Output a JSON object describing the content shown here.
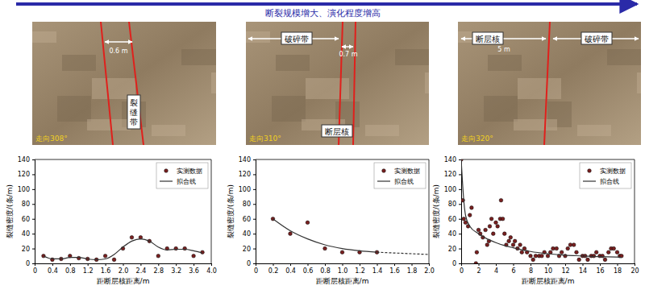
{
  "header": {
    "title": "断裂规模增大、演化程度增高"
  },
  "photos": [
    {
      "strike": "走向308°",
      "labels": [
        "0.6 m",
        "裂缝带"
      ]
    },
    {
      "strike": "走向310°",
      "labels": [
        "破碎带",
        "0.7 m",
        "断层核"
      ]
    },
    {
      "strike": "走向320°",
      "labels": [
        "断层核",
        "5 m",
        "破碎带"
      ]
    }
  ],
  "chart_data": [
    {
      "type": "scatter",
      "x_label": "距断层核距离/m",
      "y_label": "裂缝密度/(条/m)",
      "xlim": [
        0,
        4
      ],
      "xticks": [
        0,
        0.4,
        0.8,
        1.2,
        1.6,
        {
          "value": 2,
          "label": "2.0"
        },
        2.4,
        2.8,
        3.2,
        3.6,
        {
          "value": 4,
          "label": "4.0"
        }
      ],
      "ylim": [
        0,
        140
      ],
      "yticks": [
        0,
        20,
        40,
        60,
        80,
        100,
        120,
        140
      ],
      "grid": false,
      "legend": "upper right",
      "series": [
        {
          "name": "实测数据",
          "type": "scatter",
          "marker": "circle",
          "color": "#7a2020",
          "x": [
            0.2,
            0.4,
            0.6,
            0.8,
            1.0,
            1.2,
            1.4,
            1.6,
            1.8,
            2.0,
            2.2,
            2.4,
            2.6,
            2.8,
            3.0,
            3.2,
            3.4,
            3.6,
            3.8
          ],
          "values": [
            10,
            5,
            6,
            10,
            7,
            6,
            5,
            10,
            5,
            20,
            35,
            35,
            30,
            10,
            20,
            20,
            20,
            10,
            15
          ]
        },
        {
          "name": "拟合线",
          "type": "line",
          "line_style": "solid",
          "color": "#333333",
          "x": [
            0.2,
            0.4,
            0.6,
            0.8,
            1.0,
            1.2,
            1.4,
            1.6,
            1.8,
            2.0,
            2.2,
            2.4,
            2.6,
            2.8,
            3.0,
            3.2,
            3.4,
            3.6,
            3.8
          ],
          "values": [
            10,
            6,
            6,
            8,
            8,
            6,
            5,
            6,
            12,
            22,
            30,
            33,
            30,
            22,
            18,
            19,
            19,
            17,
            14
          ]
        }
      ]
    },
    {
      "type": "scatter",
      "x_label": "距断层核距离/m",
      "y_label": "裂缝密度/(条/m)",
      "xlim": [
        0,
        2
      ],
      "xticks": [
        0,
        0.2,
        0.4,
        0.6,
        0.8,
        {
          "value": 1,
          "label": "1.0"
        },
        1.2,
        1.4,
        1.6,
        1.8,
        {
          "value": 2,
          "label": "2.0"
        }
      ],
      "ylim": [
        0,
        140
      ],
      "yticks": [
        0,
        20,
        40,
        60,
        80,
        100,
        120,
        140
      ],
      "grid": false,
      "legend": "upper right",
      "series": [
        {
          "name": "实测数据",
          "type": "scatter",
          "marker": "circle",
          "color": "#7a2020",
          "x": [
            0.2,
            0.4,
            0.6,
            0.8,
            1.0,
            1.2,
            1.4
          ],
          "values": [
            60,
            40,
            55,
            20,
            15,
            15,
            15
          ]
        },
        {
          "name": "拟合线",
          "type": "line",
          "line_style": "solid",
          "color": "#333333",
          "x": [
            0.2,
            0.4,
            0.6,
            0.8,
            1.0,
            1.2,
            1.4
          ],
          "values": [
            60,
            44,
            33,
            25,
            20,
            17,
            15
          ]
        },
        {
          "type": "line",
          "line_style": "dashed",
          "color": "#333333",
          "x": [
            1.4,
            1.6,
            1.8,
            2.0
          ],
          "values": [
            15,
            14,
            13,
            12
          ]
        }
      ]
    },
    {
      "type": "scatter",
      "x_label": "距断层核距离/m",
      "y_label": "裂缝密度/(条/m)",
      "xlim": [
        0,
        20
      ],
      "xticks": [
        0,
        2,
        4,
        6,
        8,
        10,
        12,
        14,
        16,
        18,
        20
      ],
      "ylim": [
        0,
        140
      ],
      "yticks": [
        0,
        20,
        40,
        60,
        80,
        100,
        120,
        140
      ],
      "grid": false,
      "legend": "upper right",
      "series": [
        {
          "name": "实测数据",
          "type": "scatter",
          "marker": "circle",
          "color": "#7a2020",
          "x": [
            0,
            0.2,
            0.3,
            0.5,
            0.8,
            1.0,
            1.2,
            1.7,
            1.8,
            2.0,
            2.2,
            2.5,
            2.8,
            3.0,
            3.2,
            3.3,
            3.5,
            3.7,
            4.0,
            4.2,
            4.5,
            4.6,
            4.8,
            5.0,
            5.2,
            5.5,
            5.7,
            6.0,
            6.2,
            6.5,
            6.8,
            7.0,
            7.3,
            7.6,
            8.0,
            8.3,
            8.6,
            9.0,
            9.3,
            9.6,
            10.0,
            10.3,
            10.6,
            11.0,
            11.3,
            11.6,
            12.0,
            12.3,
            12.6,
            13.0,
            13.3,
            13.6,
            14.0,
            14.3,
            14.6,
            15.0,
            15.3,
            15.6,
            16.0,
            16.3,
            16.6,
            17.0,
            17.3,
            17.6,
            18.0,
            18.3,
            18.5
          ],
          "values": [
            140,
            85,
            60,
            55,
            50,
            65,
            75,
            0,
            15,
            45,
            40,
            35,
            45,
            25,
            30,
            50,
            60,
            40,
            55,
            50,
            60,
            85,
            60,
            40,
            25,
            30,
            35,
            25,
            30,
            20,
            25,
            15,
            20,
            15,
            10,
            5,
            10,
            10,
            10,
            15,
            10,
            15,
            20,
            20,
            10,
            15,
            10,
            20,
            25,
            25,
            15,
            5,
            10,
            10,
            5,
            10,
            10,
            15,
            10,
            10,
            5,
            15,
            20,
            20,
            15,
            10,
            10
          ]
        },
        {
          "name": "拟合线",
          "type": "line",
          "line_style": "solid",
          "color": "#333333",
          "x": [
            0,
            0.3,
            0.5,
            1,
            2,
            3,
            4,
            5,
            6,
            8,
            10,
            12,
            14,
            16,
            18,
            18.5
          ],
          "values": [
            140,
            85,
            65,
            50,
            40,
            33,
            28,
            24,
            21,
            16,
            13,
            11,
            10,
            9,
            8.5,
            8
          ]
        }
      ]
    }
  ]
}
